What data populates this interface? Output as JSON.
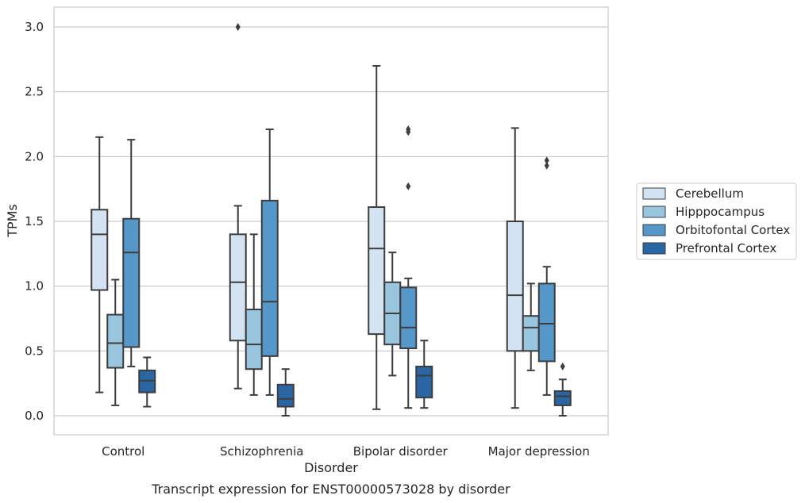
{
  "caption": "Transcript expression for ENST00000573028 by disorder",
  "chart_data": {
    "type": "box",
    "xlabel": "Disorder",
    "ylabel": "TPMs",
    "ylim": [
      -0.15,
      3.15
    ],
    "yticks": [
      "0.0",
      "0.5",
      "1.0",
      "1.5",
      "2.0",
      "2.5",
      "3.0"
    ],
    "grid": "horizontal",
    "legend_placement": "right",
    "categories": [
      "Control",
      "Schizophrenia",
      "Bipolar disorder",
      "Major depression"
    ],
    "series": [
      {
        "name": "Cerebellum",
        "color": "#d4e3f2",
        "boxes": [
          {
            "whislo": 0.18,
            "q1": 0.97,
            "med": 1.4,
            "q3": 1.59,
            "whishi": 2.15,
            "fliers": []
          },
          {
            "whislo": 0.21,
            "q1": 0.58,
            "med": 1.03,
            "q3": 1.4,
            "whishi": 1.62,
            "fliers": [
              3.0
            ]
          },
          {
            "whislo": 0.05,
            "q1": 0.63,
            "med": 1.29,
            "q3": 1.61,
            "whishi": 2.7,
            "fliers": []
          },
          {
            "whislo": 0.06,
            "q1": 0.5,
            "med": 0.93,
            "q3": 1.5,
            "whishi": 2.22,
            "fliers": []
          }
        ]
      },
      {
        "name": "Hipppocampus",
        "color": "#9ac5de",
        "boxes": [
          {
            "whislo": 0.08,
            "q1": 0.37,
            "med": 0.56,
            "q3": 0.78,
            "whishi": 1.05,
            "fliers": []
          },
          {
            "whislo": 0.16,
            "q1": 0.36,
            "med": 0.55,
            "q3": 0.82,
            "whishi": 1.4,
            "fliers": []
          },
          {
            "whislo": 0.31,
            "q1": 0.55,
            "med": 0.79,
            "q3": 1.03,
            "whishi": 1.26,
            "fliers": []
          },
          {
            "whislo": 0.35,
            "q1": 0.5,
            "med": 0.68,
            "q3": 0.77,
            "whishi": 1.02,
            "fliers": []
          }
        ]
      },
      {
        "name": "Orbitofontal Cortex",
        "color": "#5597c8",
        "boxes": [
          {
            "whislo": 0.38,
            "q1": 0.53,
            "med": 1.26,
            "q3": 1.52,
            "whishi": 2.13,
            "fliers": []
          },
          {
            "whislo": 0.16,
            "q1": 0.46,
            "med": 0.88,
            "q3": 1.66,
            "whishi": 2.21,
            "fliers": []
          },
          {
            "whislo": 0.06,
            "q1": 0.52,
            "med": 0.68,
            "q3": 0.99,
            "whishi": 1.06,
            "fliers": [
              1.77,
              2.19,
              2.21
            ]
          },
          {
            "whislo": 0.16,
            "q1": 0.42,
            "med": 0.71,
            "q3": 1.02,
            "whishi": 1.15,
            "fliers": [
              1.93,
              1.97
            ]
          }
        ]
      },
      {
        "name": "Prefrontal Cortex",
        "color": "#2b66a4",
        "boxes": [
          {
            "whislo": 0.07,
            "q1": 0.18,
            "med": 0.27,
            "q3": 0.35,
            "whishi": 0.45,
            "fliers": []
          },
          {
            "whislo": 0.0,
            "q1": 0.07,
            "med": 0.13,
            "q3": 0.24,
            "whishi": 0.36,
            "fliers": []
          },
          {
            "whislo": 0.06,
            "q1": 0.14,
            "med": 0.31,
            "q3": 0.38,
            "whishi": 0.58,
            "fliers": []
          },
          {
            "whislo": 0.0,
            "q1": 0.08,
            "med": 0.15,
            "q3": 0.19,
            "whishi": 0.28,
            "fliers": [
              0.38
            ]
          }
        ]
      }
    ]
  }
}
